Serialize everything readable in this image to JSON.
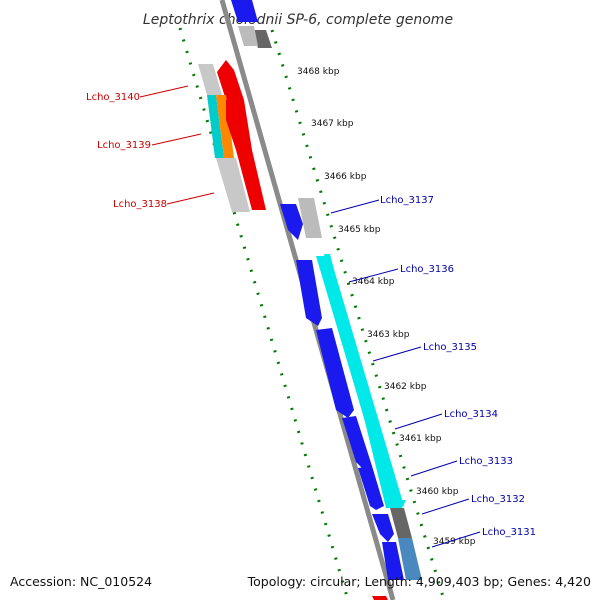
{
  "title": "Leptothrix cholodnii SP-6, complete genome",
  "footer": {
    "accession": "Accession: NC_010524",
    "summary": "Topology: circular; Length: 4,909,403 bp; Genes: 4,420"
  },
  "colors": {
    "reverse_label": "#cc0000",
    "forward_label": "#0000aa",
    "tick": "#007700",
    "backbone": "#888888"
  },
  "scale_labels": [
    "3468 kbp",
    "3467 kbp",
    "3466 kbp",
    "3465 kbp",
    "3464 kbp",
    "3463 kbp",
    "3462 kbp",
    "3461 kbp",
    "3460 kbp",
    "3459 kbp"
  ],
  "genes_reverse": [
    "Lcho_3140",
    "Lcho_3139",
    "Lcho_3138"
  ],
  "genes_forward": [
    "Lcho_3137",
    "Lcho_3136",
    "Lcho_3135",
    "Lcho_3134",
    "Lcho_3133",
    "Lcho_3132",
    "Lcho_3131"
  ]
}
